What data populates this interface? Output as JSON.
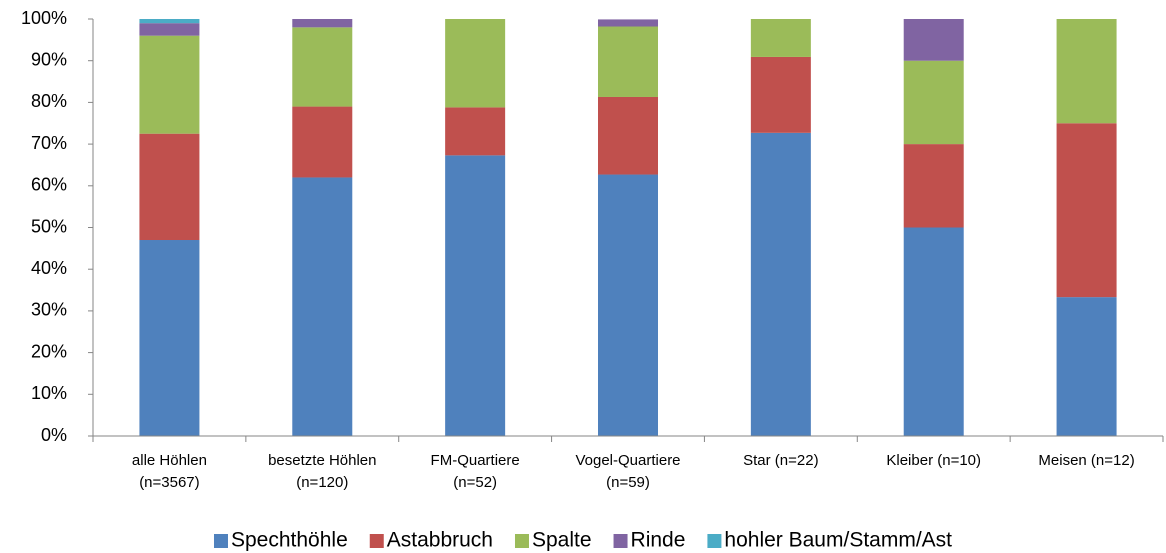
{
  "chart_data": {
    "type": "stacked_bar",
    "categories": [
      "alle Höhlen (n=3567)",
      "besetzte Höhlen (n=120)",
      "FM-Quartiere (n=52)",
      "Vogel-Quartiere (n=59)",
      "Star (n=22)",
      "Kleiber (n=10)",
      "Meisen (n=12)"
    ],
    "series": [
      {
        "name": "Spechthöhle",
        "color": "#4f81bd",
        "values": [
          47,
          62,
          67.3,
          62.7,
          72.7,
          50,
          33.3
        ]
      },
      {
        "name": "Astabbruch",
        "color": "#c0504d",
        "values": [
          25.5,
          17,
          11.5,
          18.6,
          18.2,
          20,
          41.7
        ]
      },
      {
        "name": "Spalte",
        "color": "#9bbb59",
        "values": [
          23.5,
          19,
          21.2,
          16.9,
          9.1,
          20,
          25
        ]
      },
      {
        "name": "Rinde",
        "color": "#8064a2",
        "values": [
          3,
          2,
          0,
          1.7,
          0,
          10,
          0
        ]
      },
      {
        "name": "hohler Baum/Stamm/Ast",
        "color": "#4bacc6",
        "values": [
          1,
          0,
          0,
          0,
          0,
          0,
          0
        ]
      }
    ],
    "ylim": [
      0,
      100
    ],
    "yticks": [
      {
        "value": 0,
        "label": "0%"
      },
      {
        "value": 10,
        "label": "10%"
      },
      {
        "value": 20,
        "label": "20%"
      },
      {
        "value": 30,
        "label": "30%"
      },
      {
        "value": 40,
        "label": "40%"
      },
      {
        "value": 50,
        "label": "50%"
      },
      {
        "value": 60,
        "label": "60%"
      },
      {
        "value": 70,
        "label": "70%"
      },
      {
        "value": 80,
        "label": "80%"
      },
      {
        "value": 90,
        "label": "90%"
      },
      {
        "value": 100,
        "label": "100%"
      }
    ],
    "legend": "bottom"
  }
}
